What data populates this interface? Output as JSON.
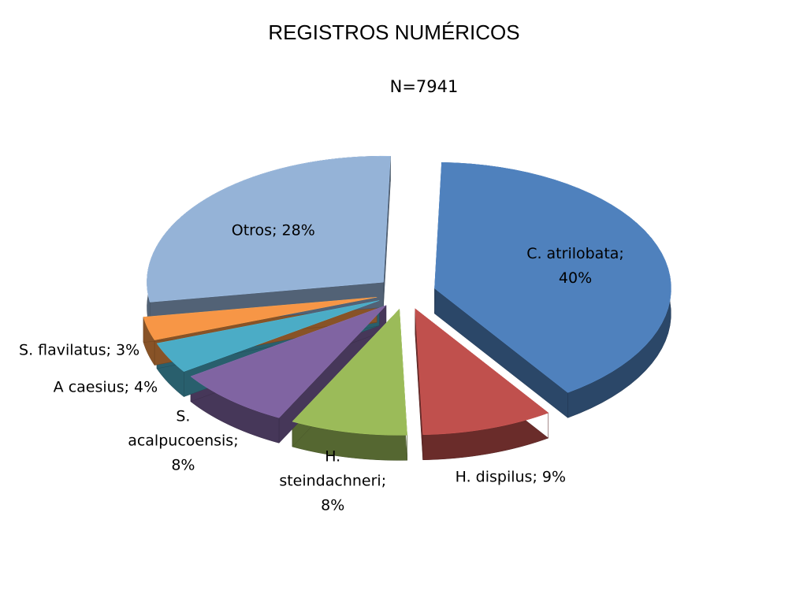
{
  "chart_data": {
    "type": "pie",
    "title": "REGISTROS NUMÉRICOS",
    "subtitle": "N=7941",
    "values": [
      40,
      9,
      8,
      8,
      4,
      3,
      28
    ],
    "value_labels": [
      "C. atrilobata; 40%",
      "H. dispilus; 9%",
      "H. steindachneri; 8%",
      "S. acalpucoensis; 8%",
      "A caesius; 4%",
      "S. flavilatus; 3%",
      "Otros; 28%"
    ],
    "colors": [
      "#4f81bd",
      "#c0504d",
      "#9bbb59",
      "#8064a2",
      "#4bacc6",
      "#f79646",
      "#95b3d7"
    ]
  }
}
